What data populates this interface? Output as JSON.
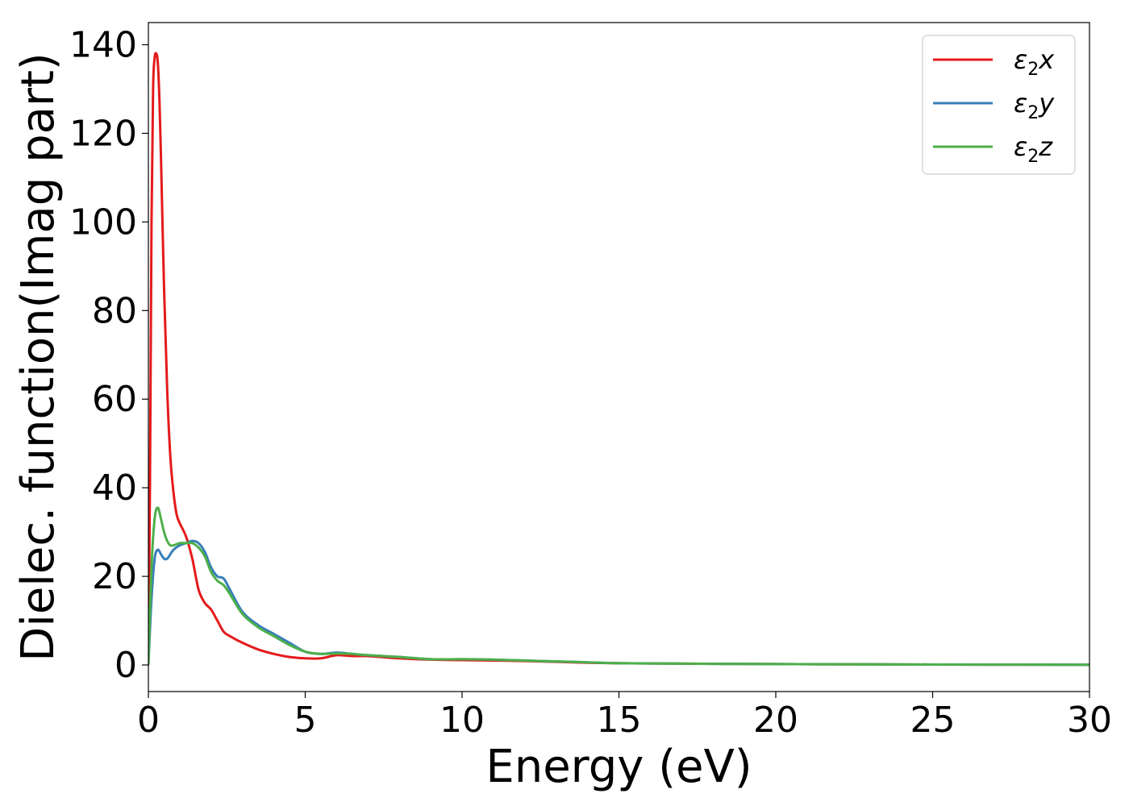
{
  "chart_data": {
    "type": "line",
    "xlabel": "Energy (eV)",
    "ylabel": "Dielec. function(Imag part)",
    "xlim": [
      0,
      30
    ],
    "ylim": [
      -6,
      145
    ],
    "xticks": [
      0,
      5,
      10,
      15,
      20,
      25,
      30
    ],
    "yticks": [
      0,
      20,
      40,
      60,
      80,
      100,
      120,
      140
    ],
    "xtick_labels": [
      "0",
      "5",
      "10",
      "15",
      "20",
      "25",
      "30"
    ],
    "ytick_labels": [
      "0",
      "20",
      "40",
      "60",
      "80",
      "100",
      "120",
      "140"
    ],
    "grid": false,
    "legend_position": "top-right",
    "series": [
      {
        "name_sym": "ε",
        "name_sub": "2",
        "name_var": "x",
        "color": "#e41a1c",
        "x": [
          0,
          0.05,
          0.1,
          0.15,
          0.2,
          0.25,
          0.3,
          0.35,
          0.4,
          0.5,
          0.6,
          0.7,
          0.8,
          0.9,
          1.0,
          1.2,
          1.4,
          1.6,
          1.8,
          2.0,
          2.2,
          2.4,
          2.6,
          3.0,
          3.5,
          4.0,
          4.5,
          5.0,
          5.5,
          6.0,
          6.5,
          7.0,
          8.0,
          9.0,
          10,
          11,
          12,
          13,
          14,
          15,
          17,
          20,
          25,
          30
        ],
        "y": [
          0,
          40,
          100,
          130,
          137,
          138,
          136,
          128,
          115,
          85,
          62,
          47,
          39,
          34,
          32,
          29,
          24,
          17,
          14,
          12.5,
          10,
          7.5,
          6.5,
          5,
          3.5,
          2.5,
          1.8,
          1.5,
          1.5,
          2.2,
          2.0,
          2.0,
          1.5,
          1.2,
          1.1,
          1.0,
          0.9,
          0.7,
          0.5,
          0.4,
          0.3,
          0.2,
          0.1,
          0.05
        ]
      },
      {
        "name_sym": "ε",
        "name_sub": "2",
        "name_var": "y",
        "color": "#377eb8",
        "x": [
          0,
          0.1,
          0.2,
          0.3,
          0.4,
          0.5,
          0.6,
          0.7,
          0.8,
          1.0,
          1.2,
          1.4,
          1.6,
          1.8,
          2.0,
          2.2,
          2.4,
          2.6,
          3.0,
          3.5,
          4.0,
          4.5,
          5.0,
          5.5,
          6.0,
          6.5,
          7.0,
          8.0,
          9.0,
          10,
          11,
          12,
          13,
          14,
          15,
          17,
          20,
          25,
          30
        ],
        "y": [
          0,
          15,
          24,
          26,
          25,
          24,
          24,
          25,
          26,
          27,
          27.5,
          28,
          27.5,
          25.5,
          22,
          20,
          19.5,
          17,
          12,
          9,
          7,
          5,
          3,
          2.5,
          2.8,
          2.5,
          2.2,
          1.8,
          1.3,
          1.3,
          1.2,
          1.0,
          0.8,
          0.6,
          0.4,
          0.3,
          0.2,
          0.1,
          0.05
        ]
      },
      {
        "name_sym": "ε",
        "name_sub": "2",
        "name_var": "z",
        "color": "#4daf4a",
        "x": [
          0,
          0.1,
          0.2,
          0.3,
          0.4,
          0.5,
          0.6,
          0.7,
          0.8,
          1.0,
          1.2,
          1.4,
          1.6,
          1.8,
          2.0,
          2.2,
          2.4,
          2.6,
          3.0,
          3.5,
          4.0,
          4.5,
          5.0,
          5.5,
          6.0,
          6.5,
          7.0,
          8.0,
          9.0,
          10,
          11,
          12,
          13,
          14,
          15,
          17,
          20,
          25,
          30
        ],
        "y": [
          0,
          22,
          33,
          35.5,
          33,
          30,
          28,
          27,
          27,
          27.5,
          27.5,
          27.5,
          26.5,
          24.5,
          21,
          19,
          18,
          16,
          11.5,
          8.5,
          6.5,
          4.5,
          3,
          2.5,
          2.6,
          2.5,
          2.2,
          1.8,
          1.3,
          1.3,
          1.2,
          1.0,
          0.8,
          0.6,
          0.4,
          0.3,
          0.2,
          0.1,
          0.05
        ]
      }
    ]
  }
}
